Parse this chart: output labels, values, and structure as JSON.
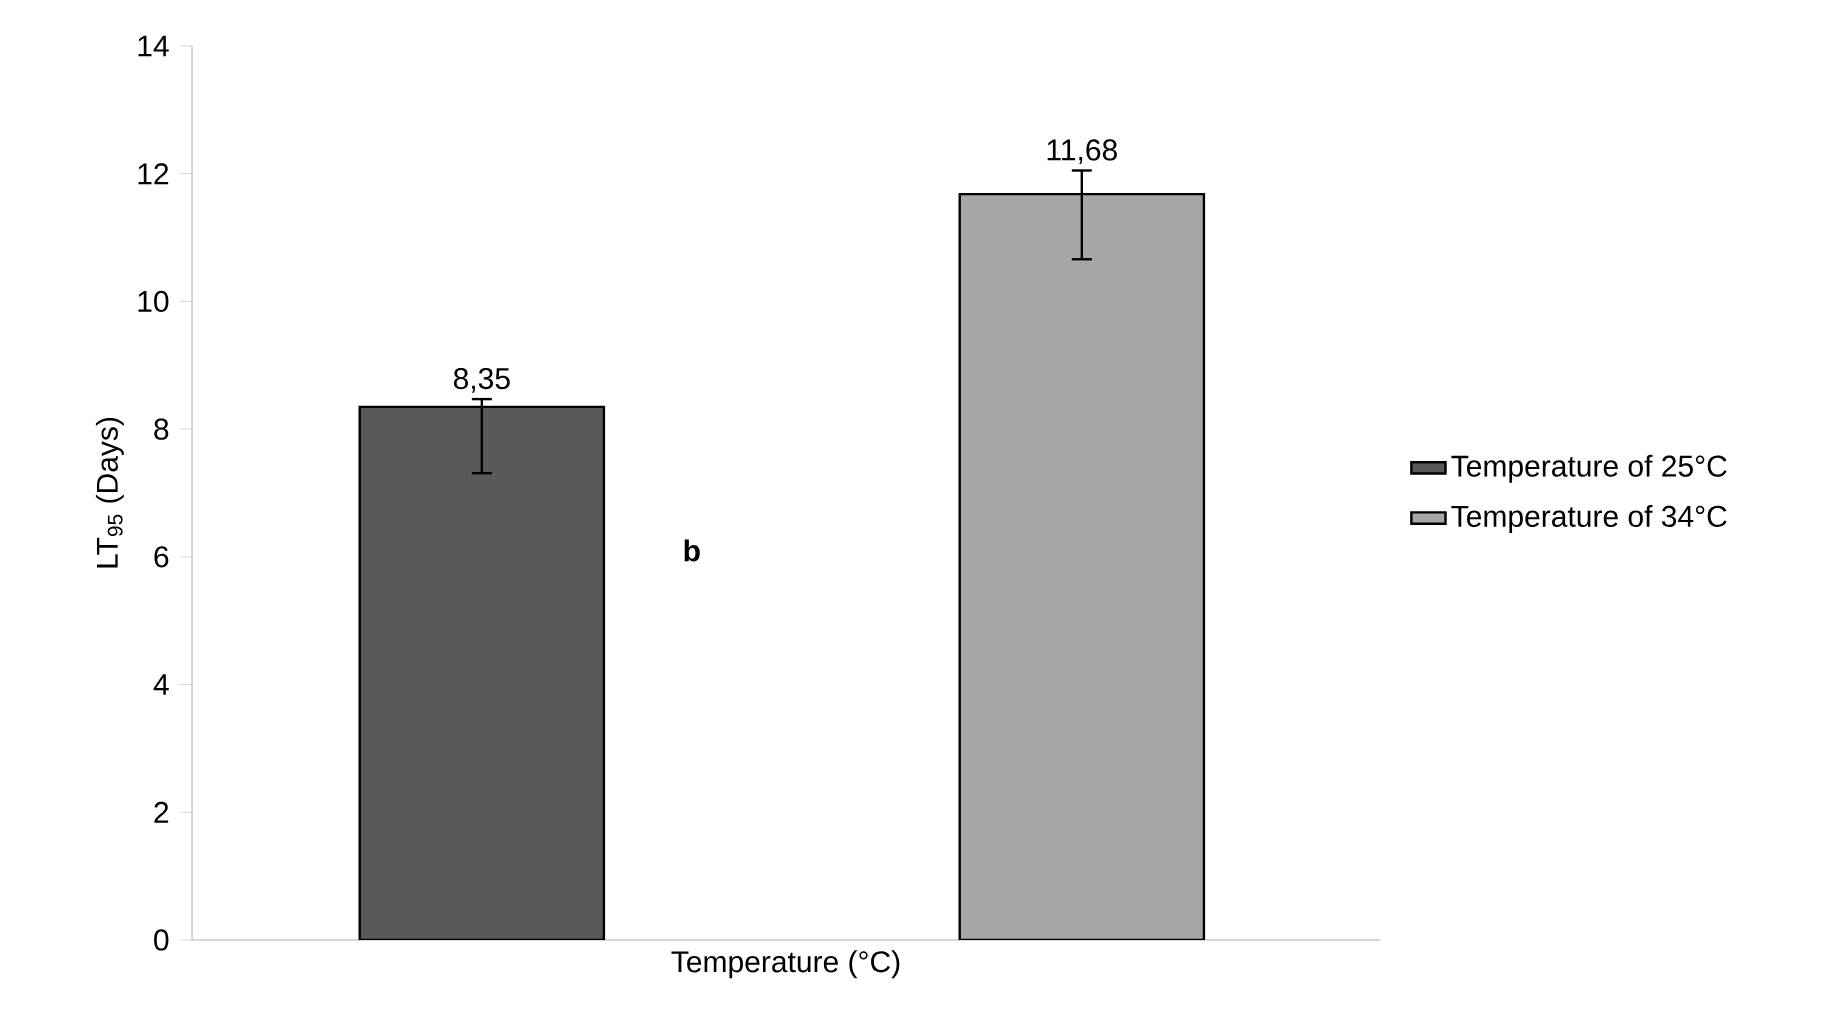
{
  "chart_data": {
    "type": "bar",
    "xlabel": "Temperature (°C)",
    "ylabel": "LT$_{95}$ (Days)",
    "categories": [
      null,
      null
    ],
    "series": [
      {
        "name": "Temperature of 25°C",
        "color": "#595959",
        "values": [
          8.35,
          null
        ],
        "errors": [
          [
            7.31,
            8.47
          ],
          null
        ],
        "value_labels": [
          "8,35",
          null
        ]
      },
      {
        "name": "Temperature of 34°C",
        "color": "#a6a6a6",
        "values": [
          null,
          11.68
        ],
        "errors": [
          null,
          [
            10.66,
            12.05
          ]
        ],
        "value_labels": [
          null,
          "11,68"
        ]
      }
    ],
    "ylim": [
      0,
      14
    ],
    "yticks": [
      0,
      2,
      4,
      6,
      8,
      10,
      12,
      14
    ],
    "legend": "right",
    "grid": false,
    "annotations": [
      "b"
    ]
  }
}
